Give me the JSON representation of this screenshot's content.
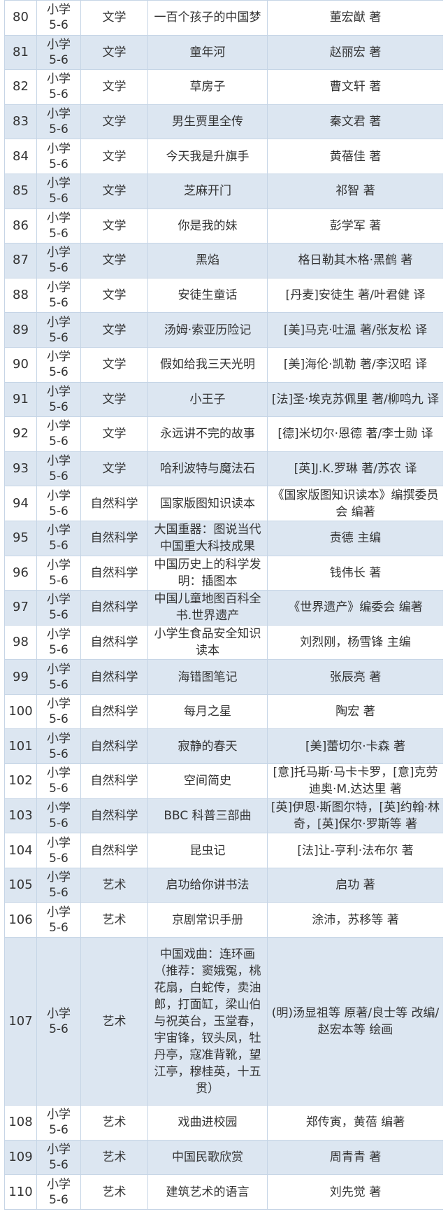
{
  "colors": {
    "alt_row": "#dce6f1",
    "border": "#c6d5e6",
    "text": "#333333"
  },
  "rows": [
    {
      "no": "80",
      "grade": "小学\n5-6",
      "category": "文学",
      "title": "一百个孩子的中国梦",
      "author": "董宏猷 著"
    },
    {
      "no": "81",
      "grade": "小学\n5-6",
      "category": "文学",
      "title": "童年河",
      "author": "赵丽宏 著"
    },
    {
      "no": "82",
      "grade": "小学\n5-6",
      "category": "文学",
      "title": "草房子",
      "author": "曹文轩 著"
    },
    {
      "no": "83",
      "grade": "小学\n5-6",
      "category": "文学",
      "title": "男生贾里全传",
      "author": "秦文君 著"
    },
    {
      "no": "84",
      "grade": "小学\n5-6",
      "category": "文学",
      "title": "今天我是升旗手",
      "author": "黄蓓佳 著"
    },
    {
      "no": "85",
      "grade": "小学\n5-6",
      "category": "文学",
      "title": "芝麻开门",
      "author": "祁智 著"
    },
    {
      "no": "86",
      "grade": "小学\n5-6",
      "category": "文学",
      "title": "你是我的妹",
      "author": "彭学军 著"
    },
    {
      "no": "87",
      "grade": "小学\n5-6",
      "category": "文学",
      "title": "黑焰",
      "author": "格日勒其木格·黑鹤 著"
    },
    {
      "no": "88",
      "grade": "小学\n5-6",
      "category": "文学",
      "title": "安徒生童话",
      "author": "[丹麦]安徒生 著/叶君健 译"
    },
    {
      "no": "89",
      "grade": "小学\n5-6",
      "category": "文学",
      "title": "汤姆·索亚历险记",
      "author": "[美]马克·吐温 著/张友松 译"
    },
    {
      "no": "90",
      "grade": "小学\n5-6",
      "category": "文学",
      "title": "假如给我三天光明",
      "author": "[美]海伦·凯勒 著/李汉昭 译"
    },
    {
      "no": "91",
      "grade": "小学\n5-6",
      "category": "文学",
      "title": "小王子",
      "author": "[法]圣·埃克苏佩里 著/柳鸣九 译"
    },
    {
      "no": "92",
      "grade": "小学\n5-6",
      "category": "文学",
      "title": "永远讲不完的故事",
      "author": "[德]米切尔·恩德 著/李士勋 译"
    },
    {
      "no": "93",
      "grade": "小学\n5-6",
      "category": "文学",
      "title": "哈利波特与魔法石",
      "author": "[英]J.K.罗琳 著/苏农 译"
    },
    {
      "no": "94",
      "grade": "小学\n5-6",
      "category": "自然科学",
      "title": "国家版图知识读本",
      "author": "《国家版图知识读本》编撰委员会 编著"
    },
    {
      "no": "95",
      "grade": "小学\n5-6",
      "category": "自然科学",
      "title": "大国重器：图说当代中国重大科技成果",
      "author": "责德 主编"
    },
    {
      "no": "96",
      "grade": "小学\n5-6",
      "category": "自然科学",
      "title": "中国历史上的科学发明：插图本",
      "author": "钱伟长 著"
    },
    {
      "no": "97",
      "grade": "小学\n5-6",
      "category": "自然科学",
      "title": "中国儿童地图百科全书.世界遗产",
      "author": "《世界遗产》编委会 编著"
    },
    {
      "no": "98",
      "grade": "小学\n5-6",
      "category": "自然科学",
      "title": "小学生食品安全知识读本",
      "author": "刘烈刚，杨雪锋 主编"
    },
    {
      "no": "99",
      "grade": "小学\n5-6",
      "category": "自然科学",
      "title": "海错图笔记",
      "author": "张辰亮 著"
    },
    {
      "no": "100",
      "grade": "小学\n5-6",
      "category": "自然科学",
      "title": "每月之星",
      "author": "陶宏 著"
    },
    {
      "no": "101",
      "grade": "小学\n5-6",
      "category": "自然科学",
      "title": "寂静的春天",
      "author": "[美]蕾切尔·卡森 著"
    },
    {
      "no": "102",
      "grade": "小学\n5-6",
      "category": "自然科学",
      "title": "空间简史",
      "author": "[意]托马斯·马卡卡罗，[意]克劳迪奥·M.达达里 著"
    },
    {
      "no": "103",
      "grade": "小学\n5-6",
      "category": "自然科学",
      "title": "BBC 科普三部曲",
      "author": "[英]伊恩·斯图尔特，[英]约翰·林奇，[英]保尔·罗斯等 著"
    },
    {
      "no": "104",
      "grade": "小学\n5-6",
      "category": "自然科学",
      "title": "昆虫记",
      "author": "[法]让-亨利·法布尔 著"
    },
    {
      "no": "105",
      "grade": "小学\n5-6",
      "category": "艺术",
      "title": "启功给你讲书法",
      "author": "启功 著"
    },
    {
      "no": "106",
      "grade": "小学\n5-6",
      "category": "艺术",
      "title": "京剧常识手册",
      "author": "涂沛，苏移等 著"
    },
    {
      "no": "107",
      "grade": "小学\n5-6",
      "category": "艺术",
      "title": "中国戏曲：连环画\n（推荐：窦娥冤，桃\n花扇，白蛇传，卖油\n郎，打面缸，梁山伯\n与祝英台，玉堂春，\n宇宙锋，钗头凤，牡\n丹亭，寇准背靴，望\n江亭，穆桂英，十五\n贯）",
      "author": "(明)汤显祖等 原著/良士等 改编/赵宏本等 绘画"
    },
    {
      "no": "108",
      "grade": "小学\n5-6",
      "category": "艺术",
      "title": "戏曲进校园",
      "author": "郑传寅，黄蓓 编著"
    },
    {
      "no": "109",
      "grade": "小学\n5-6",
      "category": "艺术",
      "title": "中国民歌欣赏",
      "author": "周青青 著"
    },
    {
      "no": "110",
      "grade": "小学\n5-6",
      "category": "艺术",
      "title": "建筑艺术的语言",
      "author": "刘先觉 著"
    }
  ]
}
